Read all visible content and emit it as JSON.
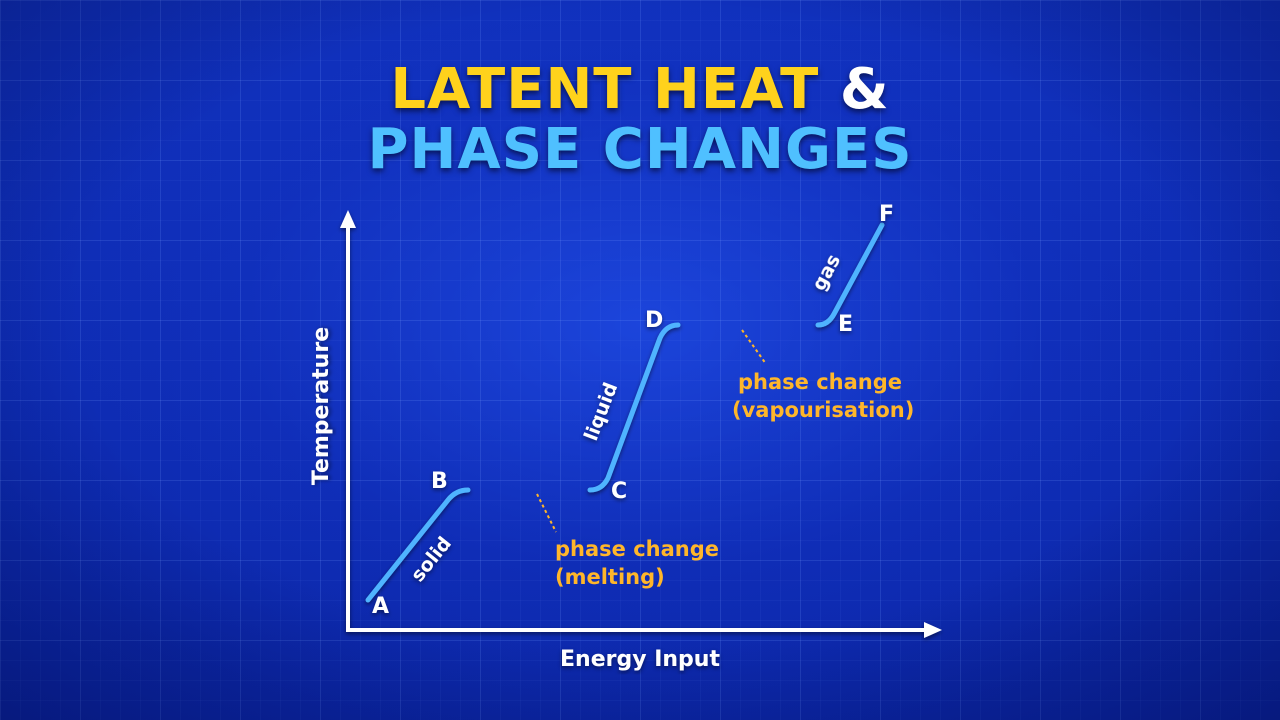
{
  "title": {
    "part1": "LATENT HEAT",
    "ampersand": "&",
    "line2": "PHASE CHANGES"
  },
  "axes": {
    "x_label": "Energy Input",
    "y_label": "Temperature"
  },
  "points": [
    "A",
    "B",
    "C",
    "D",
    "E",
    "F"
  ],
  "segments": {
    "solid": "solid",
    "liquid": "liquid",
    "gas": "gas"
  },
  "annotations": {
    "melting_line1": "phase change",
    "melting_line2": "(melting)",
    "vapour_line1": "phase change",
    "vapour_line2": "(vapourisation)"
  },
  "colors": {
    "background": "#0f2fb8",
    "curve": "#4fb4ff",
    "phase_change": "#e8324a",
    "annotation": "#ffb62a",
    "title_yellow": "#ffd21c",
    "title_blue": "#4fc0ff",
    "axis": "#ffffff"
  }
}
